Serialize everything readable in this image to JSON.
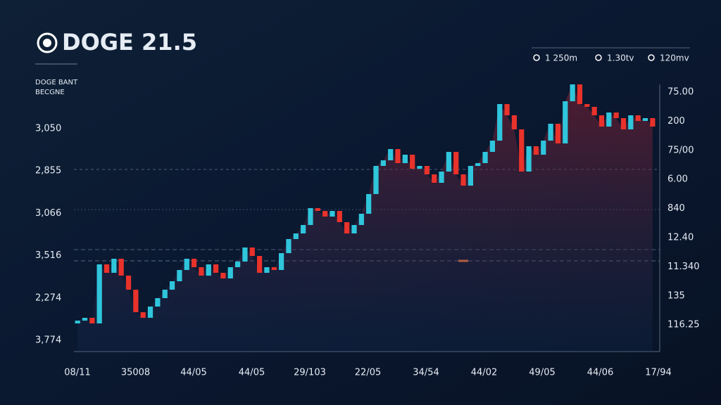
{
  "chart_data": {
    "type": "candlestick",
    "title": "DOGE 21.5",
    "subtitle": [
      "DOGE BANT",
      "BECGNE"
    ],
    "legend": [
      "1 250m",
      "1.30tv",
      "120mv"
    ],
    "y_labels": [
      "3,050",
      "2,855",
      "3,066",
      "3,516",
      "2,274",
      "3,774"
    ],
    "y2_labels": [
      "75.00",
      "200",
      "75/00",
      "6.00",
      "840",
      "12.40",
      "11.340",
      "135",
      "116.25"
    ],
    "x_labels": [
      "08/11",
      "35008",
      "44/05",
      "44/05",
      "29/103",
      "22/05",
      "34/54",
      "44/02",
      "49/05",
      "44/06",
      "17/94"
    ],
    "ylim": [
      0,
      100
    ],
    "up_color": "#2fc6dc",
    "down_color": "#e8322b",
    "open": [
      10,
      11,
      12,
      10,
      31,
      28,
      33,
      27,
      22,
      14,
      12,
      16,
      19,
      22,
      25,
      29,
      33,
      30,
      27,
      31,
      28,
      26,
      30,
      32,
      37,
      34,
      28,
      30,
      29,
      35,
      40,
      42,
      45,
      51,
      50,
      48,
      50,
      46,
      42,
      45,
      49,
      56,
      66,
      68,
      72,
      67,
      70,
      65,
      66,
      63,
      60,
      64,
      71,
      63,
      59,
      66,
      67,
      71,
      75,
      88,
      84,
      79,
      64,
      73,
      70,
      75,
      81,
      74,
      89,
      95,
      88,
      87,
      84,
      80,
      85,
      83,
      79,
      84,
      82,
      83
    ],
    "close": [
      11,
      12,
      10,
      31,
      28,
      33,
      27,
      22,
      14,
      12,
      16,
      19,
      22,
      25,
      29,
      33,
      30,
      27,
      31,
      28,
      26,
      30,
      32,
      37,
      34,
      28,
      30,
      29,
      35,
      40,
      42,
      45,
      51,
      50,
      48,
      50,
      46,
      42,
      45,
      49,
      56,
      66,
      68,
      72,
      67,
      70,
      65,
      66,
      63,
      60,
      64,
      71,
      63,
      59,
      66,
      67,
      71,
      75,
      88,
      84,
      79,
      64,
      73,
      70,
      75,
      81,
      74,
      89,
      95,
      88,
      87,
      84,
      80,
      85,
      83,
      79,
      84,
      82,
      83,
      80
    ]
  }
}
